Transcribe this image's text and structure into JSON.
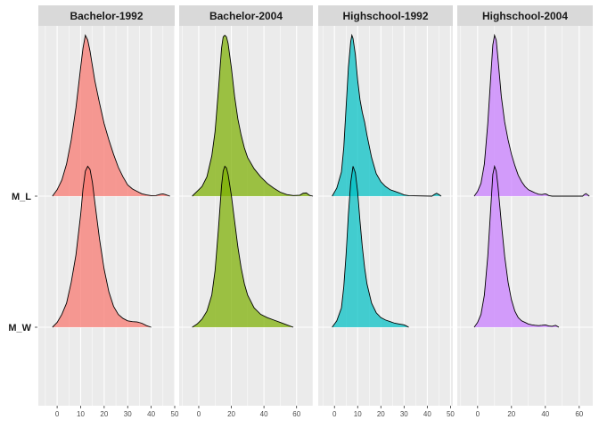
{
  "chart_data": {
    "type": "area",
    "subtype": "ridgeline-density",
    "facets": [
      "Bachelor-1992",
      "Bachelor-2004",
      "Highschool-1992",
      "Highschool-2004"
    ],
    "colors": {
      "Bachelor-1992": "#F8766D",
      "Bachelor-2004": "#7CAE00",
      "Highschool-1992": "#00BFC4",
      "Highschool-2004": "#C77CFF"
    },
    "y_categories": [
      "M_W",
      "M_L"
    ],
    "x_ticks": [
      [
        0,
        10,
        20,
        30,
        40,
        50
      ],
      [
        0,
        20,
        40,
        60
      ],
      [
        0,
        10,
        20,
        30,
        40,
        50
      ],
      [
        0,
        20,
        40,
        60
      ]
    ],
    "xlim": [
      [
        -8,
        50
      ],
      [
        -12,
        70
      ],
      [
        -7,
        51
      ],
      [
        -12,
        68
      ]
    ],
    "grid": true,
    "legend": "none",
    "ridges": [
      {
        "facet": 0,
        "row": "M_L",
        "peak_x": 12,
        "height": 0.95,
        "points": [
          [
            -2,
            0
          ],
          [
            0,
            0.04
          ],
          [
            2,
            0.1
          ],
          [
            4,
            0.2
          ],
          [
            6,
            0.35
          ],
          [
            8,
            0.55
          ],
          [
            10,
            0.8
          ],
          [
            11,
            0.92
          ],
          [
            12,
            1.0
          ],
          [
            13,
            0.97
          ],
          [
            14,
            0.9
          ],
          [
            16,
            0.72
          ],
          [
            18,
            0.58
          ],
          [
            20,
            0.45
          ],
          [
            22,
            0.35
          ],
          [
            24,
            0.26
          ],
          [
            26,
            0.18
          ],
          [
            28,
            0.12
          ],
          [
            30,
            0.07
          ],
          [
            32,
            0.045
          ],
          [
            34,
            0.03
          ],
          [
            36,
            0.015
          ],
          [
            38,
            0.008
          ],
          [
            40,
            0.003
          ],
          [
            42,
            0.004
          ],
          [
            44,
            0.012
          ],
          [
            45,
            0.014
          ],
          [
            46,
            0.01
          ],
          [
            48,
            0
          ]
        ]
      },
      {
        "facet": 0,
        "row": "M_W",
        "peak_x": 13,
        "height": 0.95,
        "points": [
          [
            -2,
            0
          ],
          [
            0,
            0.03
          ],
          [
            2,
            0.08
          ],
          [
            4,
            0.15
          ],
          [
            6,
            0.28
          ],
          [
            8,
            0.45
          ],
          [
            10,
            0.7
          ],
          [
            11,
            0.86
          ],
          [
            12,
            0.97
          ],
          [
            13,
            1.0
          ],
          [
            14,
            0.98
          ],
          [
            15,
            0.9
          ],
          [
            16,
            0.78
          ],
          [
            18,
            0.55
          ],
          [
            20,
            0.36
          ],
          [
            22,
            0.22
          ],
          [
            24,
            0.13
          ],
          [
            26,
            0.08
          ],
          [
            28,
            0.055
          ],
          [
            30,
            0.04
          ],
          [
            32,
            0.035
          ],
          [
            34,
            0.033
          ],
          [
            36,
            0.025
          ],
          [
            38,
            0.01
          ],
          [
            40,
            0
          ]
        ]
      },
      {
        "facet": 1,
        "row": "M_L",
        "peak_x": 16,
        "height": 0.95,
        "points": [
          [
            -4,
            0
          ],
          [
            -1,
            0.03
          ],
          [
            2,
            0.06
          ],
          [
            5,
            0.12
          ],
          [
            8,
            0.25
          ],
          [
            10,
            0.4
          ],
          [
            12,
            0.65
          ],
          [
            14,
            0.92
          ],
          [
            15,
            0.99
          ],
          [
            16,
            1.0
          ],
          [
            17,
            0.99
          ],
          [
            18,
            0.95
          ],
          [
            20,
            0.8
          ],
          [
            22,
            0.62
          ],
          [
            24,
            0.48
          ],
          [
            26,
            0.38
          ],
          [
            28,
            0.3
          ],
          [
            30,
            0.24
          ],
          [
            34,
            0.17
          ],
          [
            38,
            0.12
          ],
          [
            42,
            0.08
          ],
          [
            46,
            0.05
          ],
          [
            50,
            0.025
          ],
          [
            54,
            0.01
          ],
          [
            58,
            0.004
          ],
          [
            62,
            0.006
          ],
          [
            64,
            0.018
          ],
          [
            66,
            0.02
          ],
          [
            68,
            0.005
          ],
          [
            70,
            0
          ]
        ]
      },
      {
        "facet": 1,
        "row": "M_W",
        "peak_x": 16,
        "height": 0.95,
        "points": [
          [
            -4,
            0
          ],
          [
            -1,
            0.02
          ],
          [
            2,
            0.05
          ],
          [
            5,
            0.1
          ],
          [
            8,
            0.2
          ],
          [
            10,
            0.35
          ],
          [
            12,
            0.6
          ],
          [
            14,
            0.88
          ],
          [
            15,
            0.97
          ],
          [
            16,
            1.0
          ],
          [
            17,
            0.99
          ],
          [
            18,
            0.95
          ],
          [
            20,
            0.82
          ],
          [
            22,
            0.66
          ],
          [
            24,
            0.5
          ],
          [
            26,
            0.37
          ],
          [
            28,
            0.27
          ],
          [
            30,
            0.2
          ],
          [
            34,
            0.12
          ],
          [
            38,
            0.08
          ],
          [
            42,
            0.06
          ],
          [
            46,
            0.045
          ],
          [
            50,
            0.03
          ],
          [
            54,
            0.015
          ],
          [
            58,
            0
          ]
        ]
      },
      {
        "facet": 2,
        "row": "M_L",
        "peak_x": 7.5,
        "height": 0.95,
        "points": [
          [
            -1,
            0
          ],
          [
            1,
            0.05
          ],
          [
            3,
            0.15
          ],
          [
            4,
            0.3
          ],
          [
            5,
            0.55
          ],
          [
            6,
            0.8
          ],
          [
            7,
            0.96
          ],
          [
            7.5,
            1.0
          ],
          [
            8,
            0.98
          ],
          [
            9,
            0.88
          ],
          [
            10,
            0.72
          ],
          [
            11,
            0.6
          ],
          [
            12,
            0.52
          ],
          [
            13,
            0.46
          ],
          [
            14,
            0.38
          ],
          [
            16,
            0.24
          ],
          [
            18,
            0.14
          ],
          [
            20,
            0.09
          ],
          [
            22,
            0.06
          ],
          [
            24,
            0.04
          ],
          [
            26,
            0.03
          ],
          [
            28,
            0.02
          ],
          [
            30,
            0.008
          ],
          [
            32,
            0.003
          ],
          [
            42,
            0
          ],
          [
            43,
            0.01
          ],
          [
            44,
            0.018
          ],
          [
            45,
            0.01
          ],
          [
            46,
            0
          ]
        ]
      },
      {
        "facet": 2,
        "row": "M_W",
        "peak_x": 8,
        "height": 0.95,
        "points": [
          [
            -1,
            0
          ],
          [
            1,
            0.04
          ],
          [
            3,
            0.12
          ],
          [
            4,
            0.25
          ],
          [
            5,
            0.45
          ],
          [
            6,
            0.7
          ],
          [
            7,
            0.9
          ],
          [
            8,
            1.0
          ],
          [
            9,
            0.96
          ],
          [
            10,
            0.84
          ],
          [
            11,
            0.66
          ],
          [
            12,
            0.5
          ],
          [
            13,
            0.37
          ],
          [
            14,
            0.27
          ],
          [
            16,
            0.15
          ],
          [
            18,
            0.09
          ],
          [
            20,
            0.06
          ],
          [
            22,
            0.045
          ],
          [
            24,
            0.035
          ],
          [
            26,
            0.025
          ],
          [
            28,
            0.02
          ],
          [
            30,
            0.015
          ],
          [
            31,
            0.008
          ],
          [
            32,
            0
          ]
        ]
      },
      {
        "facet": 3,
        "row": "M_L",
        "peak_x": 10,
        "height": 0.95,
        "points": [
          [
            -2,
            0
          ],
          [
            0,
            0.03
          ],
          [
            2,
            0.08
          ],
          [
            4,
            0.2
          ],
          [
            6,
            0.45
          ],
          [
            8,
            0.78
          ],
          [
            9,
            0.94
          ],
          [
            10,
            1.0
          ],
          [
            11,
            0.97
          ],
          [
            12,
            0.86
          ],
          [
            14,
            0.62
          ],
          [
            16,
            0.46
          ],
          [
            18,
            0.35
          ],
          [
            20,
            0.26
          ],
          [
            22,
            0.19
          ],
          [
            24,
            0.13
          ],
          [
            26,
            0.09
          ],
          [
            28,
            0.06
          ],
          [
            30,
            0.04
          ],
          [
            32,
            0.03
          ],
          [
            34,
            0.02
          ],
          [
            36,
            0.012
          ],
          [
            38,
            0.01
          ],
          [
            40,
            0.015
          ],
          [
            41,
            0.01
          ],
          [
            42,
            0.004
          ],
          [
            44,
            0
          ],
          [
            62,
            0
          ],
          [
            63,
            0.01
          ],
          [
            64,
            0.016
          ],
          [
            65,
            0.008
          ],
          [
            66,
            0
          ]
        ]
      },
      {
        "facet": 3,
        "row": "M_W",
        "peak_x": 10,
        "height": 0.95,
        "points": [
          [
            -2,
            0
          ],
          [
            0,
            0.03
          ],
          [
            2,
            0.08
          ],
          [
            4,
            0.2
          ],
          [
            6,
            0.44
          ],
          [
            8,
            0.78
          ],
          [
            9,
            0.95
          ],
          [
            10,
            1.0
          ],
          [
            11,
            0.97
          ],
          [
            12,
            0.88
          ],
          [
            14,
            0.65
          ],
          [
            16,
            0.44
          ],
          [
            18,
            0.28
          ],
          [
            20,
            0.17
          ],
          [
            22,
            0.1
          ],
          [
            24,
            0.06
          ],
          [
            26,
            0.04
          ],
          [
            28,
            0.03
          ],
          [
            30,
            0.02
          ],
          [
            32,
            0.015
          ],
          [
            34,
            0.012
          ],
          [
            36,
            0.01
          ],
          [
            38,
            0.012
          ],
          [
            40,
            0.015
          ],
          [
            42,
            0.008
          ],
          [
            44,
            0.006
          ],
          [
            46,
            0.012
          ],
          [
            47,
            0.006
          ],
          [
            48,
            0
          ]
        ]
      }
    ]
  }
}
